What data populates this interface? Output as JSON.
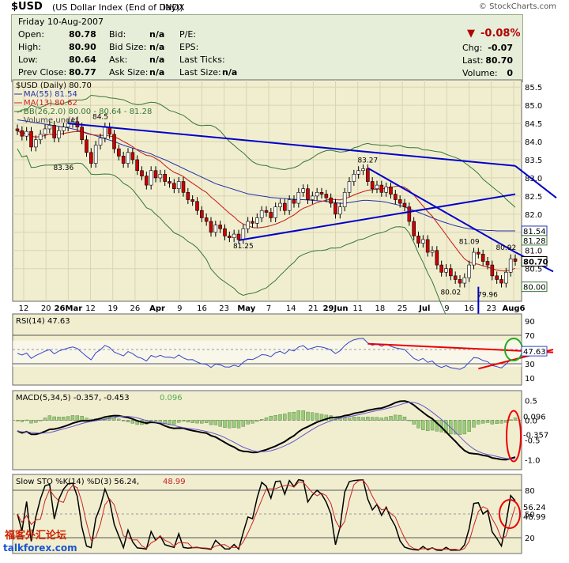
{
  "header": {
    "symbol": "$USD",
    "name": "(US Dollar Index (End of Day))",
    "exchange": "INDX",
    "source": "© StockCharts.com"
  },
  "quote": {
    "date": "Friday  10-Aug-2007",
    "open_l": "Open:",
    "open": "80.78",
    "high_l": "High:",
    "high": "80.90",
    "low_l": "Low:",
    "low": "80.64",
    "prev_l": "Prev Close:",
    "prev": "80.77",
    "bid_l": "Bid:",
    "bid": "n/a",
    "bidsize_l": "Bid Size:",
    "bidsize": "n/a",
    "ask_l": "Ask:",
    "ask": "n/a",
    "asksize_l": "Ask Size:",
    "asksize": "n/a",
    "pe_l": "P/E:",
    "pe": "",
    "eps_l": "EPS:",
    "eps": "",
    "lastticks_l": "Last Ticks:",
    "lastticks": "",
    "lastsize_l": "Last Size:",
    "lastsize": "n/a",
    "pct": "-0.08%",
    "chg_l": "Chg:",
    "chg": "-0.07",
    "last_l": "Last:",
    "last": "80.70",
    "vol_l": "Volume:",
    "vol": "0"
  },
  "legend": {
    "main": "$USD (Daily) 80.70",
    "ma55": "MA(55) 81.54",
    "ma13": "MA(13) 80.62",
    "bb": "BB(26,2.0) 80.00 - 80.64 - 81.28",
    "vol": "Volume undef",
    "rsi": "RSI(14) 47.63",
    "macd_a": "MACD(5,34,5) -0.357, -0.453",
    "macd_b": "0.096",
    "sto_a": "Slow STO %K(14) %D(3) 56.24,",
    "sto_b": "48.99"
  },
  "colors": {
    "up": "#ffffff",
    "down": "#cc0000",
    "ma55": "#2233aa",
    "ma13": "#cc2222",
    "bb": "#337733",
    "trend": "#0000cc",
    "panel": "#f1eed0",
    "red": "#ee0000",
    "green": "#22aa22"
  },
  "chart_data": {
    "type": "candlestick",
    "x_labels": [
      "12",
      "20",
      "26Mar",
      "12",
      "19",
      "26",
      "Apr",
      "9",
      "16",
      "23",
      "May",
      "7",
      "14",
      "21",
      "29Jun",
      "11",
      "18",
      "25",
      "Jul",
      "9",
      "16",
      "23",
      "Aug6"
    ],
    "price_ticks": [
      "85.5",
      "85.0",
      "84.5",
      "84.0",
      "83.5",
      "83.0",
      "82.5",
      "82.0",
      "81.5",
      "81.0",
      "80.5"
    ],
    "price_range": [
      79.6,
      85.7
    ],
    "close": [
      84.3,
      84.15,
      84.28,
      83.85,
      84.05,
      84.2,
      84.35,
      84.45,
      84.1,
      84.3,
      84.4,
      84.5,
      84.55,
      84.4,
      84.05,
      83.7,
      83.4,
      83.9,
      84.1,
      84.4,
      84.2,
      83.8,
      83.6,
      83.4,
      83.7,
      83.5,
      83.2,
      83.05,
      82.8,
      83.2,
      83.0,
      83.1,
      82.9,
      82.85,
      82.7,
      82.9,
      82.6,
      82.4,
      82.35,
      82.1,
      81.9,
      81.8,
      81.5,
      81.7,
      81.6,
      81.4,
      81.35,
      81.45,
      81.3,
      81.6,
      81.8,
      81.75,
      81.9,
      82.1,
      82.05,
      81.9,
      82.2,
      82.3,
      82.1,
      82.4,
      82.3,
      82.6,
      82.7,
      82.4,
      82.5,
      82.6,
      82.55,
      82.45,
      82.3,
      82.0,
      82.2,
      82.6,
      82.9,
      83.1,
      83.2,
      83.25,
      82.9,
      82.7,
      82.8,
      82.6,
      82.75,
      82.55,
      82.4,
      82.3,
      82.2,
      81.8,
      81.4,
      81.2,
      81.3,
      80.95,
      81.0,
      80.6,
      80.4,
      80.5,
      80.3,
      80.2,
      80.1,
      80.25,
      80.6,
      80.95,
      80.9,
      80.7,
      80.6,
      80.3,
      80.2,
      80.1,
      80.4,
      80.77,
      80.7
    ],
    "ma55": [
      84.6,
      84.58,
      84.56,
      84.54,
      84.52,
      84.5,
      84.48,
      84.46,
      84.44,
      84.42,
      84.4,
      84.38,
      84.35,
      84.32,
      84.28,
      84.24,
      84.2,
      84.16,
      84.12,
      84.08,
      84.04,
      84.0,
      83.95,
      83.9,
      83.86,
      83.82,
      83.78,
      83.74,
      83.7,
      83.66,
      83.6,
      83.55,
      83.5,
      83.44,
      83.38,
      83.32,
      83.26,
      83.2,
      83.14,
      83.08,
      83.02,
      82.96,
      82.9,
      82.84,
      82.8,
      82.76,
      82.72,
      82.68,
      82.64,
      82.6,
      82.56,
      82.54,
      82.52,
      82.5,
      82.48,
      82.46,
      82.45,
      82.44,
      82.43,
      82.42,
      82.41,
      82.4,
      82.4,
      82.39,
      82.38,
      82.37,
      82.36,
      82.35,
      82.34,
      82.32,
      82.3,
      82.3,
      82.32,
      82.34,
      82.36,
      82.38,
      82.38,
      82.37,
      82.36,
      82.35,
      82.33,
      82.3,
      82.27,
      82.24,
      82.2,
      82.15,
      82.1,
      82.05,
      82.0,
      81.95,
      81.9,
      81.85,
      81.8,
      81.76,
      81.72,
      81.68,
      81.65,
      81.62,
      81.6,
      81.58,
      81.57,
      81.56,
      81.55,
      81.55,
      81.54,
      81.54,
      81.54,
      81.54,
      81.54
    ],
    "sr_labels": {
      "h1": "84.5",
      "l1": "83.36",
      "l2": "81.25",
      "h2": "83.27",
      "h3": "81.09",
      "h4": "80.92",
      "l3": "80.02",
      "l4": "79.96"
    },
    "right_labels": {
      "ma55": "81.54",
      "bb_up": "81.28",
      "last": "80.70",
      "bb_low": "80.00"
    },
    "rsi": {
      "ticks": [
        "90",
        "70",
        "50",
        "30",
        "10"
      ],
      "last": "47.63"
    },
    "macd": {
      "ticks": [
        "0.5",
        "0.0",
        "-0.5",
        "-1.0"
      ],
      "hist_last": "0.096",
      "last": "-0.357"
    },
    "sto": {
      "ticks": [
        "80",
        "50",
        "20"
      ],
      "k_last": "56.24",
      "d_last": "48.99"
    }
  },
  "watermark": {
    "line1": "福客外汇论坛",
    "line2": "talkforex.com"
  }
}
